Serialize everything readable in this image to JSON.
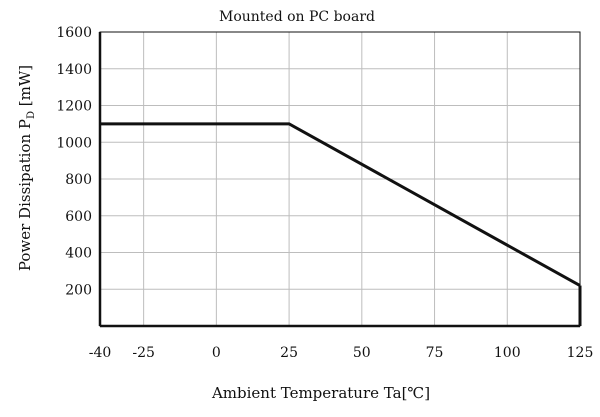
{
  "chart_data": {
    "type": "line",
    "title": "Mounted on PC board",
    "xlabel": "Ambient Temperature  Ta[℃]",
    "ylabel": "Power Dissipation P",
    "ylabel_subscript": "D",
    "ylabel_unit": " [mW]",
    "xlim": [
      -40,
      125
    ],
    "ylim": [
      0,
      1600
    ],
    "x_ticks": [
      -40,
      -25,
      0,
      25,
      50,
      75,
      100,
      125
    ],
    "y_ticks": [
      200,
      400,
      600,
      800,
      1000,
      1200,
      1400,
      1600
    ],
    "grid": true,
    "series": [
      {
        "x": [
          -40,
          25,
          125
        ],
        "y": [
          1100,
          1100,
          220
        ],
        "color": "#111111"
      }
    ]
  }
}
